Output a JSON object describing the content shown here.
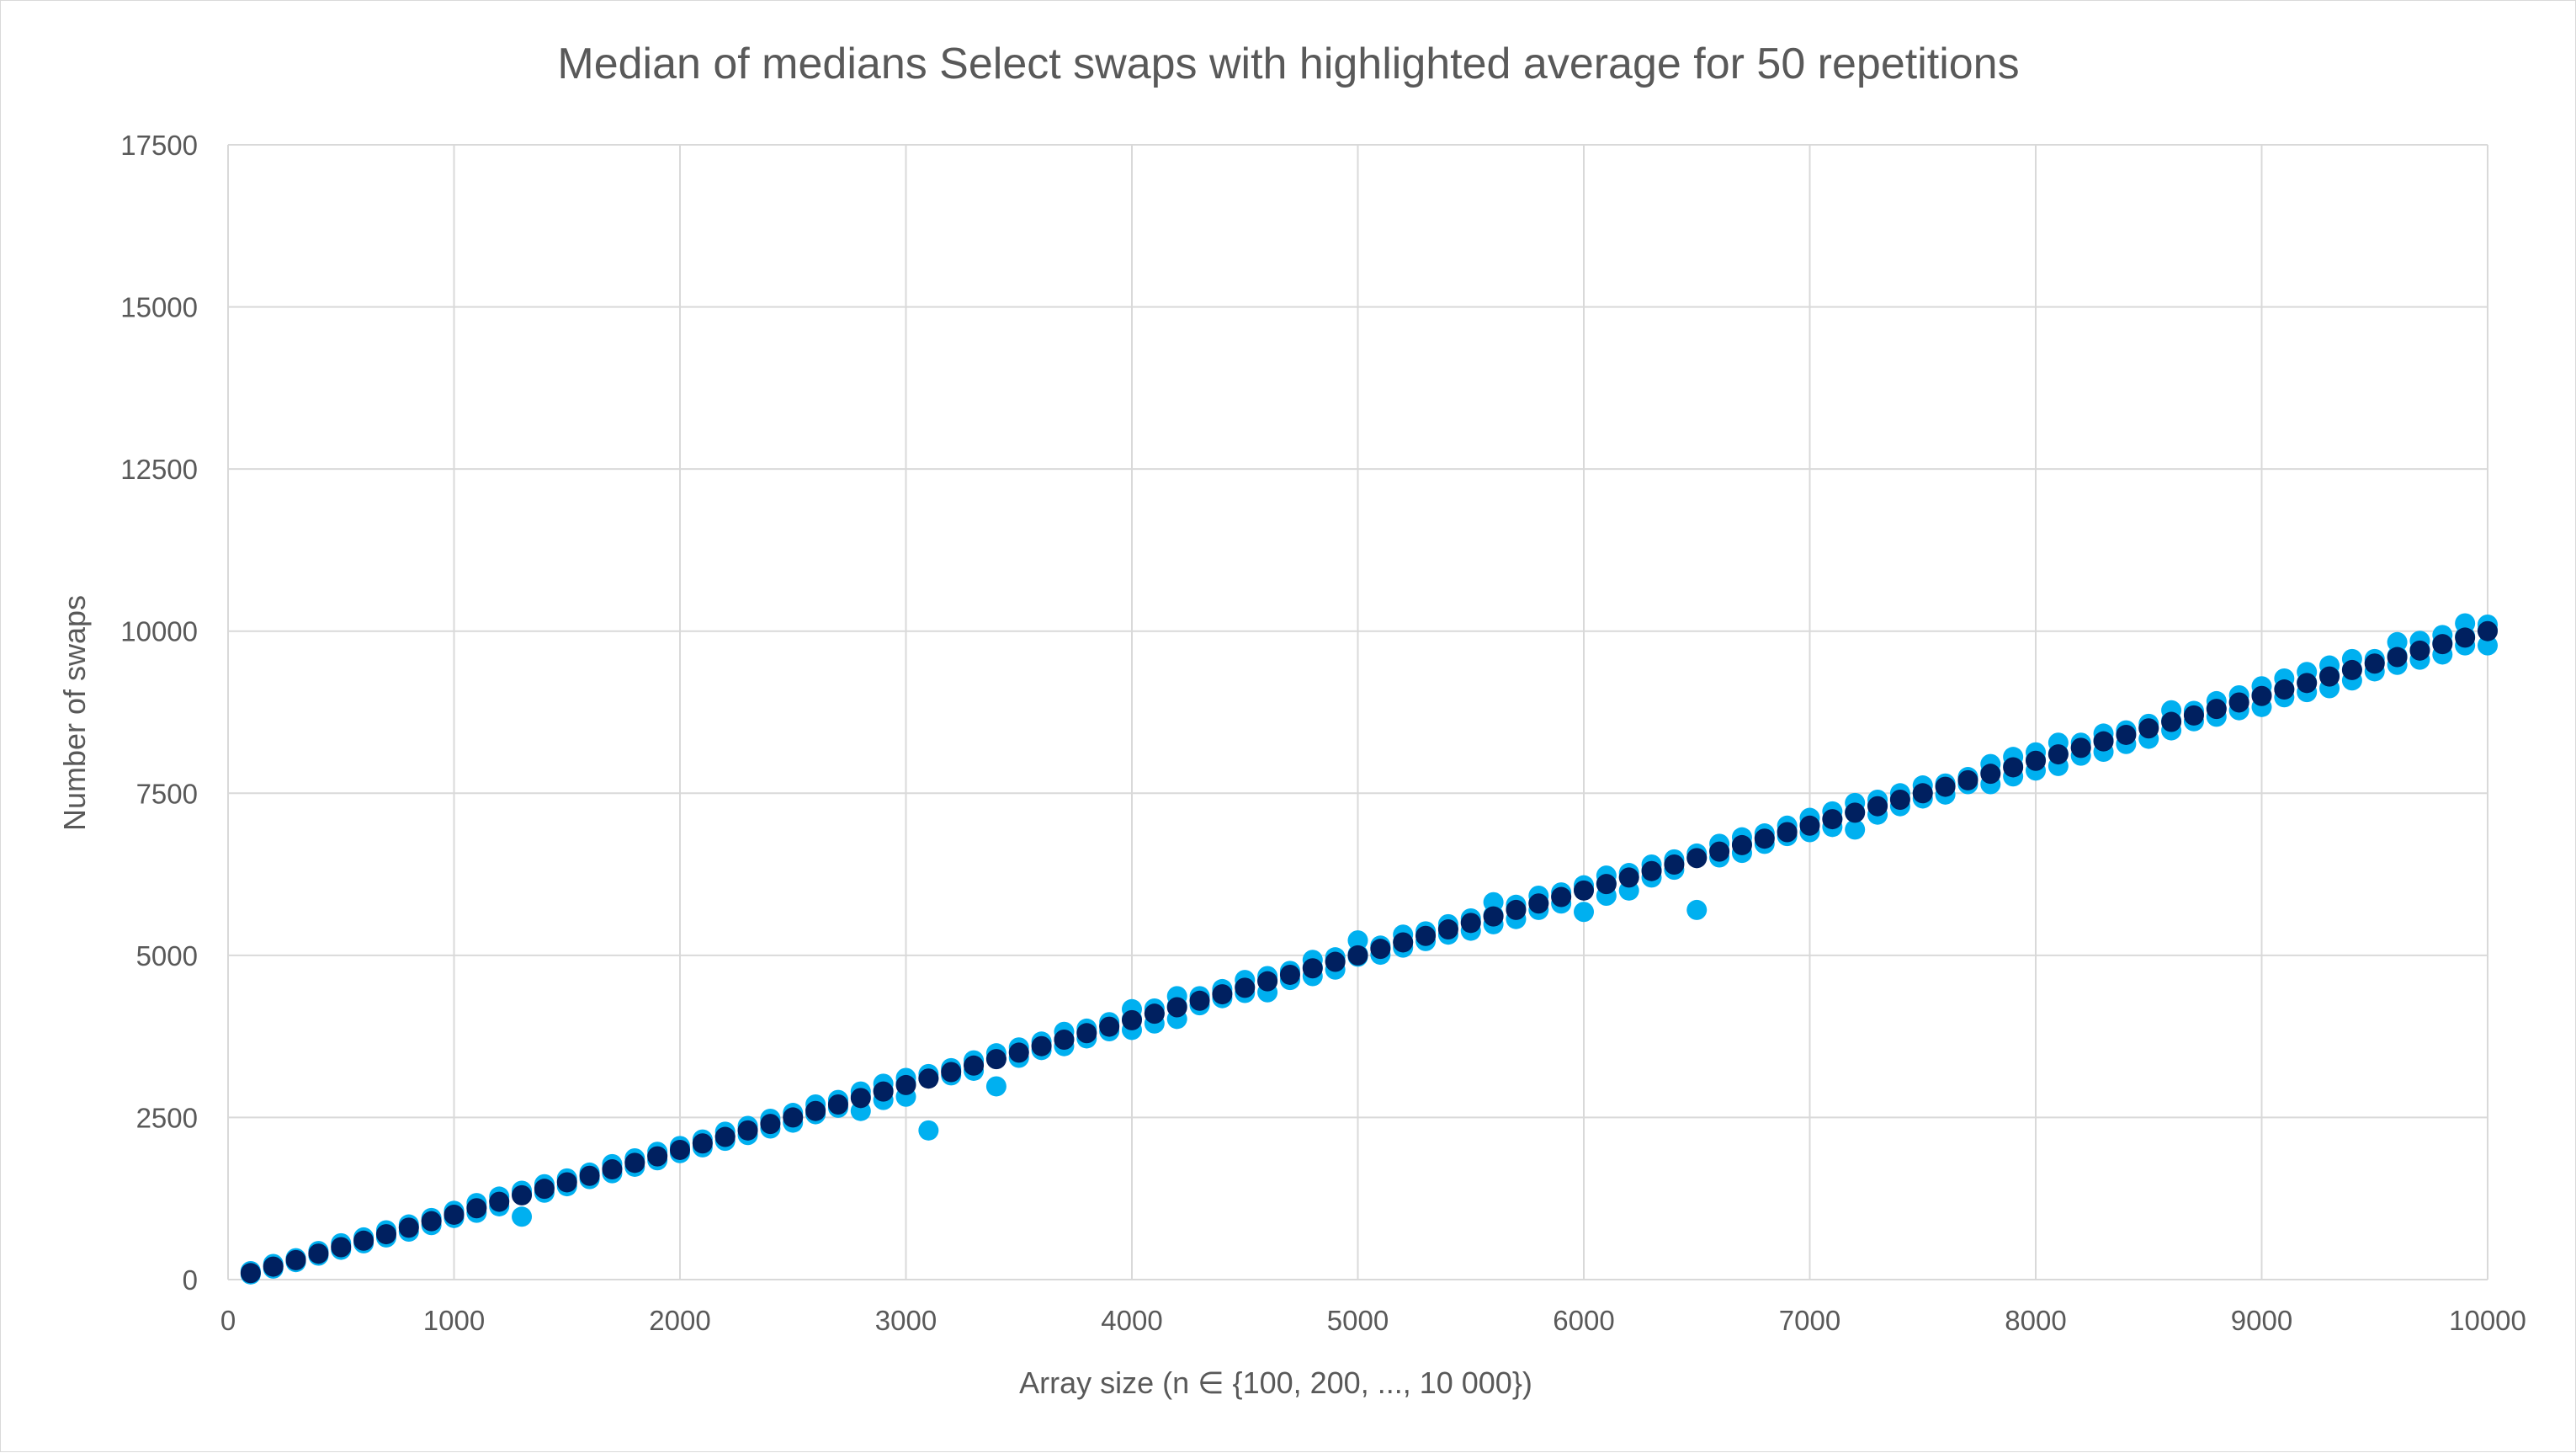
{
  "colors": {
    "repetition": "#00b0f0",
    "average": "#002060",
    "grid": "#d9d9d9",
    "text": "#595959"
  },
  "chart_data": {
    "type": "scatter",
    "title": "Median of medians Select swaps with highlighted average for 50 repetitions",
    "xlabel": "Array size (n ∈ {100, 200, ..., 10 000})",
    "ylabel": "Number of swaps",
    "xlim": [
      0,
      10000
    ],
    "ylim": [
      0,
      17500
    ],
    "xticks": [
      "0",
      "1000",
      "2000",
      "3000",
      "4000",
      "5000",
      "6000",
      "7000",
      "8000",
      "9000",
      "10000"
    ],
    "yticks": [
      "0",
      "2500",
      "5000",
      "7500",
      "10000",
      "12500",
      "15000",
      "17500"
    ],
    "grid": true,
    "legend": "none",
    "x": [
      100,
      200,
      300,
      400,
      500,
      600,
      700,
      800,
      900,
      1000,
      1100,
      1200,
      1300,
      1400,
      1500,
      1600,
      1700,
      1800,
      1900,
      2000,
      2100,
      2200,
      2300,
      2400,
      2500,
      2600,
      2700,
      2800,
      2900,
      3000,
      3100,
      3200,
      3300,
      3400,
      3500,
      3600,
      3700,
      3800,
      3900,
      4000,
      4100,
      4200,
      4300,
      4400,
      4500,
      4600,
      4700,
      4800,
      4900,
      5000,
      5100,
      5200,
      5300,
      5400,
      5500,
      5600,
      5700,
      5800,
      5900,
      6000,
      6100,
      6200,
      6300,
      6400,
      6500,
      6600,
      6700,
      6800,
      6900,
      7000,
      7100,
      7200,
      7300,
      7400,
      7500,
      7600,
      7700,
      7800,
      7900,
      8000,
      8100,
      8200,
      8300,
      8400,
      8500,
      8600,
      8700,
      8800,
      8900,
      9000,
      9100,
      9200,
      9300,
      9400,
      9500,
      9600,
      9700,
      9800,
      9900,
      10000
    ],
    "series": [
      {
        "role": "average",
        "values": [
          100,
          200,
          300,
          400,
          500,
          600,
          700,
          800,
          900,
          1000,
          1100,
          1200,
          1300,
          1400,
          1500,
          1600,
          1700,
          1800,
          1900,
          2000,
          2100,
          2200,
          2300,
          2400,
          2500,
          2600,
          2700,
          2800,
          2900,
          3000,
          3100,
          3200,
          3300,
          3400,
          3500,
          3600,
          3700,
          3800,
          3900,
          4000,
          4100,
          4200,
          4300,
          4400,
          4500,
          4600,
          4700,
          4800,
          4900,
          5000,
          5100,
          5200,
          5300,
          5400,
          5500,
          5600,
          5700,
          5800,
          5900,
          6000,
          6100,
          6200,
          6300,
          6400,
          6500,
          6600,
          6700,
          6800,
          6900,
          7000,
          7100,
          7200,
          7300,
          7400,
          7500,
          7600,
          7700,
          7800,
          7900,
          8000,
          8100,
          8200,
          8300,
          8400,
          8500,
          8600,
          8700,
          8800,
          8900,
          9000,
          9100,
          9200,
          9300,
          9400,
          9500,
          9600,
          9700,
          9800,
          9900,
          10000
        ]
      },
      {
        "role": "repetition-upper",
        "values": [
          130,
          240,
          330,
          440,
          560,
          650,
          760,
          850,
          950,
          1060,
          1180,
          1280,
          1370,
          1470,
          1560,
          1650,
          1780,
          1870,
          1970,
          2060,
          2160,
          2280,
          2370,
          2480,
          2570,
          2700,
          2770,
          2900,
          3020,
          3110,
          3170,
          3260,
          3380,
          3490,
          3580,
          3670,
          3820,
          3870,
          3970,
          4170,
          4180,
          4370,
          4370,
          4480,
          4620,
          4680,
          4760,
          4930,
          4970,
          5230,
          5150,
          5320,
          5370,
          5480,
          5570,
          5820,
          5780,
          5920,
          5970,
          6080,
          6230,
          6270,
          6400,
          6480,
          6570,
          6720,
          6820,
          6880,
          7000,
          7120,
          7220,
          7350,
          7400,
          7500,
          7620,
          7650,
          7750,
          7950,
          8060,
          8130,
          8280,
          8280,
          8420,
          8470,
          8570,
          8780,
          8770,
          8920,
          9010,
          9150,
          9270,
          9370,
          9470,
          9570,
          9570,
          9830,
          9850,
          9940,
          10120,
          10100
        ]
      },
      {
        "role": "repetition-lower",
        "values": [
          80,
          170,
          270,
          370,
          460,
          560,
          650,
          740,
          840,
          950,
          1030,
          1130,
          970,
          1340,
          1440,
          1550,
          1640,
          1740,
          1840,
          1950,
          2040,
          2140,
          2230,
          2330,
          2420,
          2550,
          2650,
          2600,
          2770,
          2820,
          2300,
          3150,
          3220,
          2980,
          3420,
          3540,
          3600,
          3720,
          3830,
          3850,
          3950,
          4020,
          4230,
          4340,
          4420,
          4430,
          4620,
          4680,
          4780,
          4980,
          5010,
          5120,
          5220,
          5320,
          5380,
          5480,
          5560,
          5700,
          5800,
          5670,
          5920,
          6000,
          6200,
          6320,
          5700,
          6510,
          6580,
          6720,
          6840,
          6900,
          6980,
          6940,
          7170,
          7300,
          7420,
          7480,
          7640,
          7640,
          7760,
          7850,
          7920,
          8080,
          8140,
          8260,
          8340,
          8470,
          8610,
          8680,
          8780,
          8830,
          8980,
          9060,
          9120,
          9240,
          9380,
          9480,
          9560,
          9640,
          9780,
          9780
        ]
      },
      {
        "role": "repetition-mid",
        "values": [
          110,
          210,
          310,
          410,
          520,
          610,
          710,
          810,
          910,
          1010,
          1120,
          1220,
          1320,
          1420,
          1520,
          1610,
          1720,
          1820,
          1920,
          2010,
          2110,
          2210,
          2310,
          2420,
          2520,
          2620,
          2720,
          2830,
          2920,
          3030,
          3110,
          3220,
          3320,
          3410,
          3510,
          3610,
          3710,
          3820,
          3920,
          4020,
          4110,
          4220,
          4310,
          4420,
          4520,
          4620,
          4720,
          4820,
          4920,
          5020,
          5120,
          5210,
          5310,
          5420,
          5520,
          5620,
          5720,
          5810,
          5910,
          6020,
          6110,
          6210,
          6320,
          6420,
          6510,
          6620,
          6720,
          6820,
          6920,
          7020,
          7110,
          7210,
          7320,
          7420,
          7510,
          7620,
          7720,
          7820,
          7920,
          8020,
          8110,
          8210,
          8320,
          8420,
          8520,
          8620,
          8720,
          8810,
          8910,
          9020,
          9110,
          9210,
          9320,
          9410,
          9520,
          9620,
          9720,
          9820,
          9920,
          10020
        ]
      }
    ]
  }
}
